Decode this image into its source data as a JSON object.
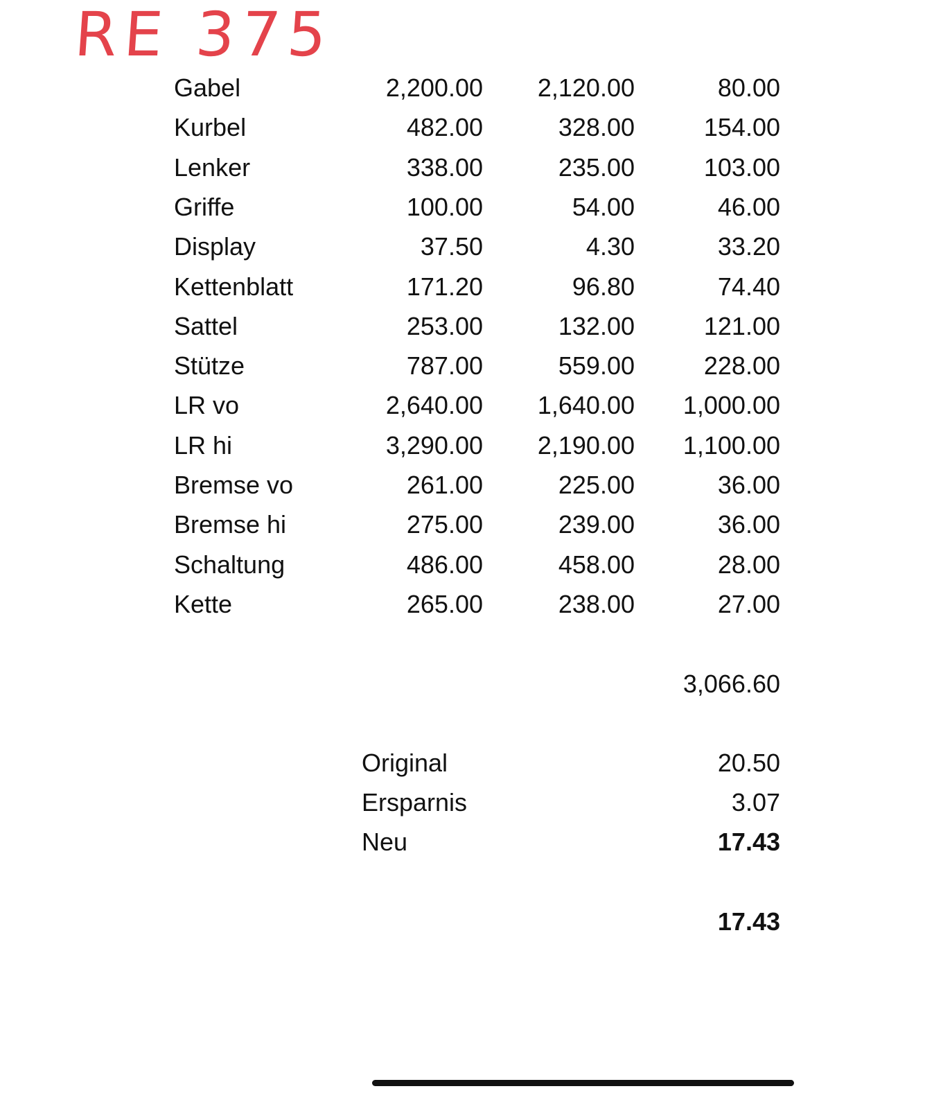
{
  "handwritten_note": "RE 375",
  "note_color": "#e4434b",
  "rows": [
    {
      "label": "Gabel",
      "a": "2,200.00",
      "b": "2,120.00",
      "c": "80.00"
    },
    {
      "label": "Kurbel",
      "a": "482.00",
      "b": "328.00",
      "c": "154.00"
    },
    {
      "label": "Lenker",
      "a": "338.00",
      "b": "235.00",
      "c": "103.00"
    },
    {
      "label": "Griffe",
      "a": "100.00",
      "b": "54.00",
      "c": "46.00"
    },
    {
      "label": "Display",
      "a": "37.50",
      "b": "4.30",
      "c": "33.20"
    },
    {
      "label": "Kettenblatt",
      "a": "171.20",
      "b": "96.80",
      "c": "74.40"
    },
    {
      "label": "Sattel",
      "a": "253.00",
      "b": "132.00",
      "c": "121.00"
    },
    {
      "label": "Stütze",
      "a": "787.00",
      "b": "559.00",
      "c": "228.00"
    },
    {
      "label": "LR vo",
      "a": "2,640.00",
      "b": "1,640.00",
      "c": "1,000.00"
    },
    {
      "label": "LR hi",
      "a": "3,290.00",
      "b": "2,190.00",
      "c": "1,100.00"
    },
    {
      "label": "Bremse vo",
      "a": "261.00",
      "b": "225.00",
      "c": "36.00"
    },
    {
      "label": "Bremse hi",
      "a": "275.00",
      "b": "239.00",
      "c": "36.00"
    },
    {
      "label": "Schaltung",
      "a": "486.00",
      "b": "458.00",
      "c": "28.00"
    },
    {
      "label": "Kette",
      "a": "265.00",
      "b": "238.00",
      "c": "27.00"
    }
  ],
  "total": "3,066.60",
  "summary": [
    {
      "label": "Original",
      "value": "20.50"
    },
    {
      "label": "Ersparnis",
      "value": "3.07"
    },
    {
      "label": "Neu",
      "value": "17.43"
    }
  ],
  "final": "17.43"
}
